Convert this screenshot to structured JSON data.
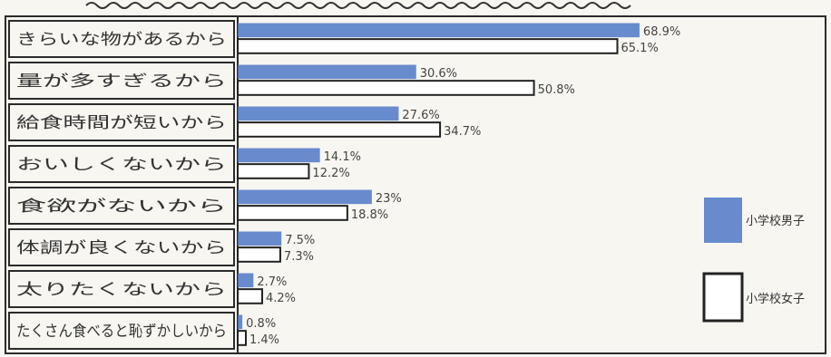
{
  "chart_data": {
    "type": "bar",
    "orientation": "horizontal",
    "categories": [
      "きらいな物があるから",
      "量が多すぎるから",
      "給食時間が短いから",
      "おいしくないから",
      "食欲がないから",
      "体調が良くないから",
      "太りたくないから",
      "たくさん食べると恥ずかしいから"
    ],
    "series": [
      {
        "name": "小学校男子",
        "values": [
          68.9,
          30.6,
          27.6,
          14.1,
          23,
          7.5,
          2.7,
          0.8
        ],
        "labels": [
          "68.9%",
          "30.6%",
          "27.6%",
          "14.1%",
          "23%",
          "7.5%",
          "2.7%",
          "0.8%"
        ],
        "color": "#4f78c8"
      },
      {
        "name": "小学校女子",
        "values": [
          65.1,
          50.8,
          34.7,
          12.2,
          18.8,
          7.3,
          4.2,
          1.4
        ],
        "labels": [
          "65.1%",
          "50.8%",
          "34.7%",
          "12.2%",
          "18.8%",
          "7.3%",
          "4.2%",
          "1.4%"
        ],
        "color": "#ffffff"
      }
    ],
    "legend": [
      "小学校男子",
      "小学校女子"
    ],
    "legend_position": "right",
    "grid": false,
    "xlim": [
      0,
      70
    ]
  }
}
